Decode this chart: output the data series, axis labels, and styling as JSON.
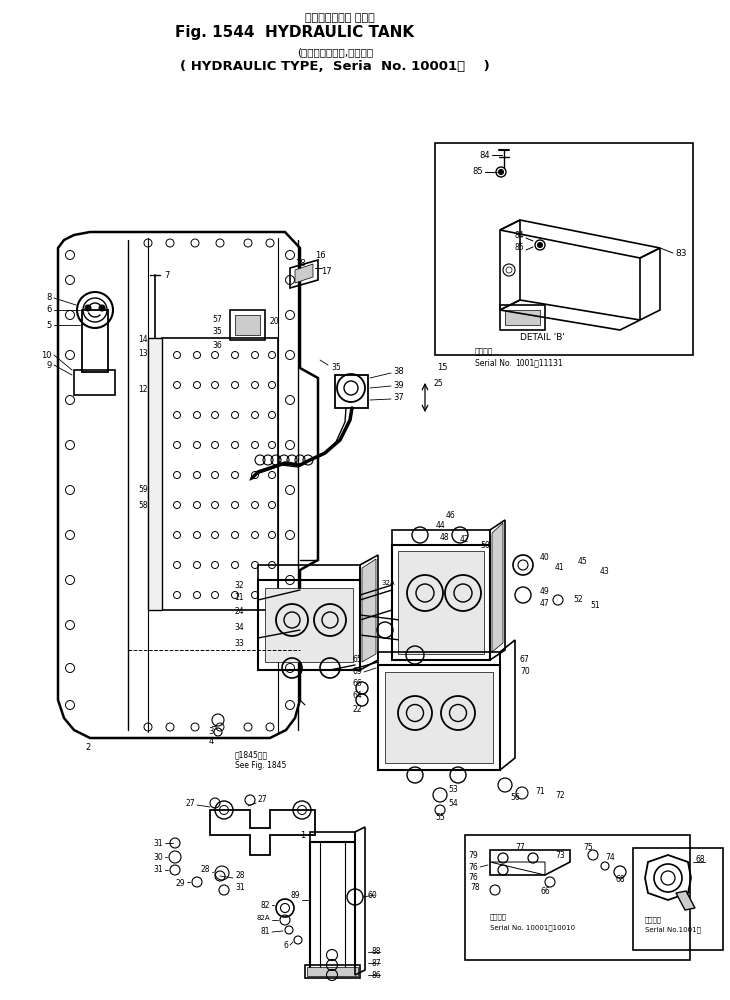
{
  "bg_color": "#ffffff",
  "line_color": "#000000",
  "fig_width": 7.3,
  "fig_height": 10.0,
  "dpi": 100,
  "title1": "Fig. 1544  HYDRAULIC TANK",
  "title1_jp": "ハイドロリック タンク",
  "title2": "( HYDRAULIC TYPE,  Seria  No. 10001～    )",
  "title2_jp": "(油　　圧　　式,適用号機"
}
